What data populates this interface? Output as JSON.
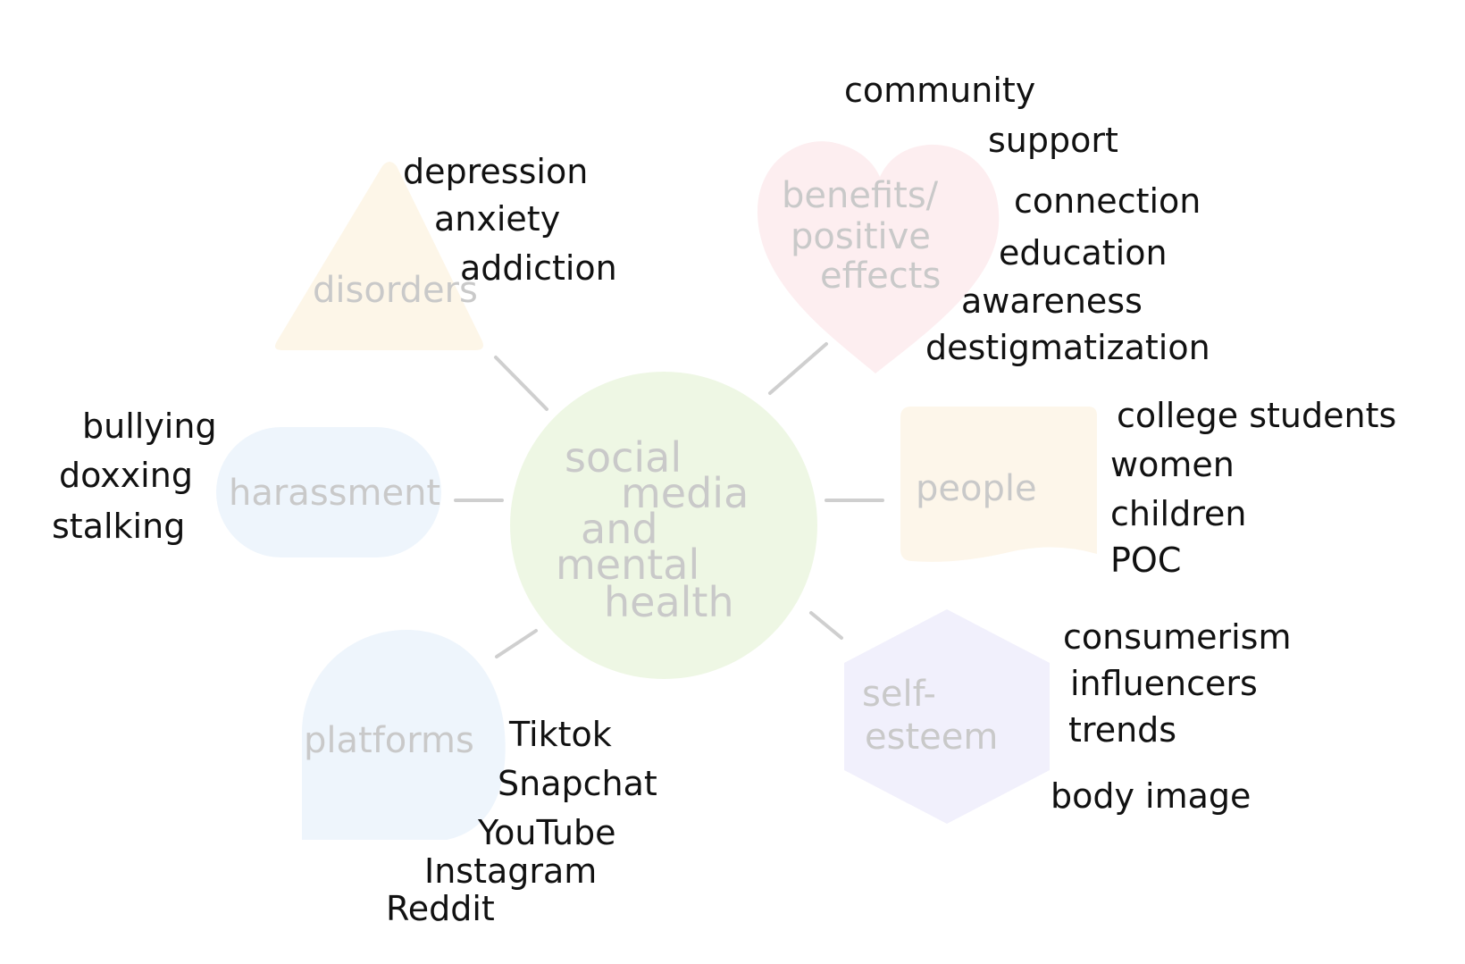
{
  "hub": {
    "lines": [
      "social",
      "media",
      "and",
      "mental",
      "health"
    ],
    "color": "#eef7e4"
  },
  "nodes": {
    "disorders": {
      "label_lines": [
        "disorders"
      ],
      "shape": "triangle",
      "color": "#fdf6e8",
      "items": [
        "depression",
        "anxiety",
        "addiction"
      ]
    },
    "benefits": {
      "label_lines": [
        "benefits/",
        "positive",
        "effects"
      ],
      "shape": "heart",
      "color": "#fdeef0",
      "items": [
        "community",
        "support",
        "connection",
        "education",
        "awareness",
        "destigmatization"
      ]
    },
    "harassment": {
      "label_lines": [
        "harassment"
      ],
      "shape": "pill",
      "color": "#eef5fc",
      "items": [
        "bullying",
        "doxxing",
        "stalking"
      ]
    },
    "people": {
      "label_lines": [
        "people"
      ],
      "shape": "banner",
      "color": "#fdf6ea",
      "items": [
        "college students",
        "women",
        "children",
        "POC"
      ]
    },
    "platforms": {
      "label_lines": [
        "platforms"
      ],
      "shape": "speech-bubble",
      "color": "#eef5fc",
      "items": [
        "Tiktok",
        "Snapchat",
        "YouTube",
        "Instagram",
        "Reddit"
      ]
    },
    "self_esteem": {
      "label_lines": [
        "self-",
        "esteem"
      ],
      "shape": "hexagon",
      "color": "#f1f0fc",
      "items": [
        "consumerism",
        "influencers",
        "trends",
        "body image"
      ]
    }
  },
  "colors": {
    "spoke": "#cfcfcf",
    "node_label": "#c9c9c9",
    "item_text": "#111111"
  }
}
